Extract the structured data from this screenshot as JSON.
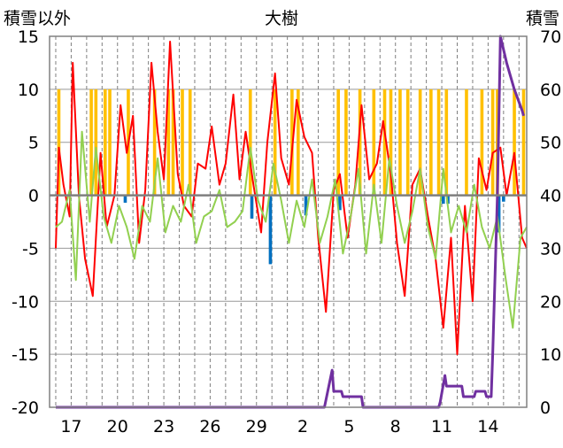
{
  "chart_data": {
    "type": "line",
    "title": "大樹",
    "ylabel_left": "積雪以外",
    "ylabel_right": "積雪",
    "xlabel": "",
    "ylim_left": [
      -20,
      15
    ],
    "ylim_right": [
      0,
      70
    ],
    "x_tick_labels": [
      "17",
      "20",
      "23",
      "26",
      "29",
      "2",
      "5",
      "8",
      "11",
      "14"
    ],
    "y_left_ticks": [
      "15",
      "10",
      "5",
      "0",
      "-5",
      "-10",
      "-15",
      "-20"
    ],
    "y_right_ticks": [
      "70",
      "60",
      "50",
      "40",
      "30",
      "20",
      "10",
      "0"
    ],
    "grid": true,
    "legend": "none",
    "series": [
      {
        "key": "snowfall",
        "style": "bar",
        "color": "#ffc000",
        "axis": "left",
        "x": [
          16.2,
          18.3,
          18.6,
          19.2,
          19.5,
          20.7,
          22.4,
          23.3,
          23.6,
          24.2,
          24.7,
          28.6,
          30.2,
          31.3,
          31.7,
          34.3,
          34.8,
          35.7,
          36.6,
          37.3,
          37.7,
          38.3,
          38.8,
          39.6,
          40.3,
          40.8,
          41.3,
          42.6,
          43.6,
          44.3,
          44.6,
          45.7,
          46.3
        ],
        "values": [
          10,
          10,
          10,
          10,
          10,
          10,
          10,
          10,
          10,
          10,
          10,
          10,
          10,
          10,
          10,
          10,
          10,
          10,
          10,
          10,
          10,
          10,
          10,
          10,
          10,
          10,
          10,
          10,
          10,
          10,
          10,
          10,
          10
        ]
      },
      {
        "key": "precipitation",
        "style": "bar",
        "color": "#0070c0",
        "axis": "left",
        "x": [
          20.5,
          28.7,
          29.9,
          32.2,
          34.4,
          41.1,
          41.4,
          44.7,
          45.0
        ],
        "values": [
          -0.7,
          -2.2,
          -6.5,
          -1.9,
          -1.4,
          -0.8,
          -0.8,
          -3.5,
          -0.6
        ]
      },
      {
        "key": "temp_max",
        "style": "line",
        "color": "#ff0000",
        "axis": "left",
        "x": [
          16.0,
          16.2,
          16.5,
          16.9,
          17.1,
          17.5,
          17.9,
          18.4,
          18.9,
          19.3,
          19.8,
          20.2,
          20.6,
          21.0,
          21.4,
          21.8,
          22.2,
          22.6,
          23.0,
          23.4,
          23.9,
          24.3,
          24.8,
          25.2,
          25.7,
          26.1,
          26.6,
          27.0,
          27.5,
          27.9,
          28.3,
          28.8,
          29.3,
          29.7,
          30.2,
          30.6,
          31.1,
          31.6,
          32.1,
          32.6,
          33.0,
          33.5,
          34.0,
          34.4,
          34.9,
          35.4,
          35.8,
          36.3,
          36.8,
          37.2,
          37.7,
          38.1,
          38.6,
          39.1,
          39.6,
          40.1,
          40.6,
          41.1,
          41.6,
          42.0,
          42.5,
          43.0,
          43.4,
          43.9,
          44.3,
          44.8,
          45.2,
          45.7,
          46.2,
          46.5
        ],
        "values": [
          -5.0,
          4.5,
          1.0,
          -2.0,
          12.5,
          0.0,
          -6.0,
          -9.5,
          4.0,
          -3.0,
          0.0,
          8.5,
          4.0,
          7.5,
          -4.5,
          0.5,
          12.5,
          6.0,
          1.5,
          14.5,
          2.0,
          -1.0,
          -2.0,
          3.0,
          2.5,
          6.5,
          1.0,
          3.0,
          9.5,
          1.5,
          6.0,
          1.0,
          -3.5,
          5.0,
          11.5,
          3.5,
          1.0,
          9.0,
          5.5,
          4.0,
          -4.0,
          -11.0,
          0.5,
          2.0,
          -4.0,
          1.0,
          8.5,
          1.5,
          3.0,
          7.0,
          2.0,
          -4.5,
          -9.5,
          1.0,
          2.5,
          -2.0,
          -6.0,
          -12.5,
          -4.0,
          -15.0,
          -1.0,
          -10.0,
          3.5,
          0.5,
          4.0,
          4.5,
          0.0,
          4.0,
          -4.0,
          -5.0
        ]
      },
      {
        "key": "temp_min",
        "style": "line",
        "color": "#92d050",
        "axis": "left",
        "x": [
          16.0,
          16.4,
          16.9,
          17.3,
          17.7,
          18.2,
          18.6,
          19.1,
          19.6,
          20.1,
          20.6,
          21.1,
          21.6,
          22.1,
          22.6,
          23.1,
          23.6,
          24.1,
          24.6,
          25.1,
          25.6,
          26.1,
          26.6,
          27.1,
          27.6,
          28.1,
          28.6,
          29.1,
          29.6,
          30.1,
          30.6,
          31.1,
          31.6,
          32.1,
          32.6,
          33.1,
          33.6,
          34.1,
          34.6,
          35.1,
          35.6,
          36.1,
          36.6,
          37.1,
          37.6,
          38.1,
          38.6,
          39.1,
          39.6,
          40.1,
          40.6,
          41.1,
          41.6,
          42.1,
          42.6,
          43.1,
          43.6,
          44.1,
          44.6,
          45.1,
          45.6,
          46.1,
          46.5
        ],
        "values": [
          -3.0,
          -2.5,
          0.5,
          -8.0,
          6.0,
          -2.5,
          4.5,
          -2.0,
          -4.5,
          -1.0,
          -3.0,
          -6.0,
          -1.0,
          -2.5,
          3.5,
          -3.5,
          -1.0,
          -2.5,
          1.0,
          -4.5,
          -2.0,
          -1.5,
          0.5,
          -3.0,
          -2.5,
          -1.5,
          4.5,
          -0.5,
          -2.5,
          3.0,
          -0.5,
          -4.5,
          -0.5,
          -3.0,
          1.5,
          -4.5,
          -2.0,
          1.5,
          -5.5,
          -2.0,
          2.5,
          -5.5,
          1.0,
          -4.5,
          3.5,
          -1.0,
          -4.5,
          -1.5,
          2.5,
          -3.0,
          -6.0,
          2.5,
          -3.5,
          -1.0,
          -3.5,
          1.0,
          -3.0,
          -5.0,
          -2.0,
          -7.5,
          -12.5,
          -4.0,
          -3.0
        ]
      },
      {
        "key": "snow_depth",
        "style": "line",
        "color": "#7030a0",
        "axis": "right",
        "x": [
          16.0,
          33.4,
          33.9,
          34.0,
          34.5,
          34.6,
          35.8,
          35.9,
          36.9,
          37.0,
          37.5,
          37.6,
          40.8,
          40.9,
          41.2,
          41.3,
          42.3,
          42.4,
          43.1,
          43.2,
          43.8,
          43.9,
          44.2,
          44.3,
          44.6,
          44.8,
          45.2,
          45.7,
          46.2,
          46.3
        ],
        "values": [
          0,
          0,
          7,
          3,
          3,
          2,
          2,
          0,
          0,
          0,
          0,
          0,
          0,
          1,
          6,
          4,
          4,
          2,
          2,
          3,
          3,
          2,
          2,
          10,
          40,
          70,
          65,
          60,
          56,
          55
        ]
      }
    ]
  }
}
